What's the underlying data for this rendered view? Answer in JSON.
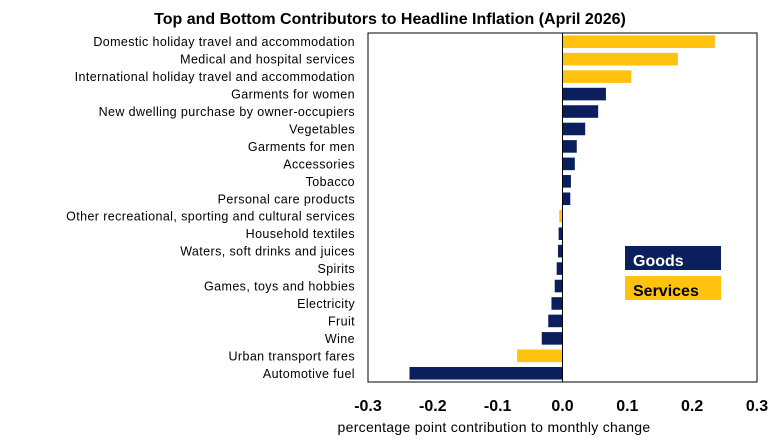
{
  "chart_data": {
    "type": "bar",
    "orientation": "horizontal",
    "title": "Top and Bottom Contributors to Headline Inflation (April 2026)",
    "xlabel": "percentage point contribution to monthly change",
    "ylabel": "",
    "xlim": [
      -0.3,
      0.3
    ],
    "x_ticks": [
      "-0.3",
      "-0.2",
      "-0.1",
      "0.0",
      "0.1",
      "0.2",
      "0.3"
    ],
    "grid": false,
    "legend_position": "right",
    "colors": {
      "Goods": "#0a1f5c",
      "Services": "#ffc20e"
    },
    "legend": [
      "Goods",
      "Services"
    ],
    "categories": [
      "Domestic holiday travel and accommodation",
      "Medical and hospital services",
      "International holiday travel and accommodation",
      "Garments for women",
      "New dwelling purchase by owner-occupiers",
      "Vegetables",
      "Garments for men",
      "Accessories",
      "Tobacco",
      "Personal care products",
      "Other recreational, sporting and cultural services",
      "Household textiles",
      "Waters, soft drinks and juices",
      "Spirits",
      "Games, toys and hobbies",
      "Electricity",
      "Fruit",
      "Wine",
      "Urban transport fares",
      "Automotive fuel"
    ],
    "values": [
      0.235,
      0.178,
      0.106,
      0.067,
      0.055,
      0.035,
      0.022,
      0.019,
      0.013,
      0.012,
      -0.005,
      -0.006,
      -0.007,
      -0.009,
      -0.012,
      -0.017,
      -0.022,
      -0.032,
      -0.07,
      -0.236
    ],
    "groups": [
      "Services",
      "Services",
      "Services",
      "Goods",
      "Goods",
      "Goods",
      "Goods",
      "Goods",
      "Goods",
      "Goods",
      "Services",
      "Goods",
      "Goods",
      "Goods",
      "Goods",
      "Goods",
      "Goods",
      "Goods",
      "Services",
      "Goods"
    ]
  }
}
